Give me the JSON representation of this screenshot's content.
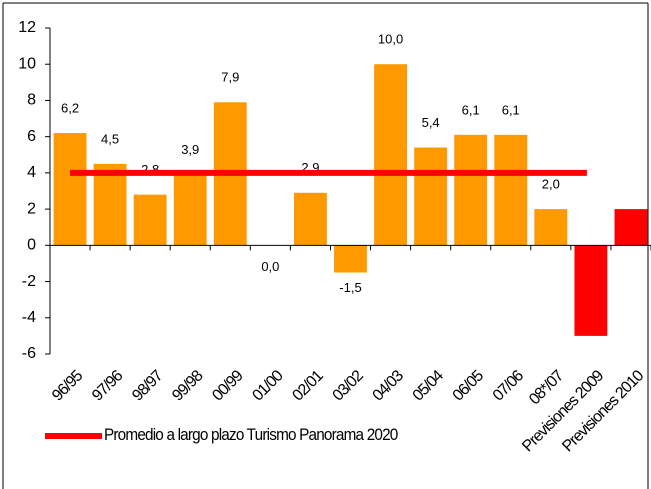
{
  "chart_data": {
    "type": "bar",
    "categories": [
      "96/95",
      "97/96",
      "98/97",
      "99/98",
      "00/99",
      "01/00",
      "02/01",
      "03/02",
      "04/03",
      "05/04",
      "06/05",
      "07/06",
      "08*/07",
      "Previsiones 2009",
      "Previsiones 2010"
    ],
    "values": [
      6.2,
      4.5,
      2.8,
      3.9,
      7.9,
      0.0,
      2.9,
      -1.5,
      10.0,
      5.4,
      6.1,
      6.1,
      2.0,
      -5,
      2
    ],
    "value_labels": [
      "6,2",
      "4,5",
      "2,8",
      "3,9",
      "7,9",
      "0,0",
      "2,9",
      "-1,5",
      "10,0",
      "5,4",
      "6,1",
      "6,1",
      "2,0",
      null,
      null
    ],
    "colors": [
      "#FF9900",
      "#FF9900",
      "#FF9900",
      "#FF9900",
      "#FF9900",
      "#FF9900",
      "#FF9900",
      "#FF9900",
      "#FF9900",
      "#FF9900",
      "#FF9900",
      "#FF9900",
      "#FF9900",
      "#FF0000",
      "#FF0000"
    ],
    "average": {
      "name": "Promedio a largo plazo Turismo Panorama 2020",
      "value": 4,
      "color": "#FF0000"
    },
    "ylim": [
      -6,
      12
    ],
    "yticks": [
      -6,
      -4,
      -2,
      0,
      2,
      4,
      6,
      8,
      10,
      12
    ],
    "grid": false
  }
}
